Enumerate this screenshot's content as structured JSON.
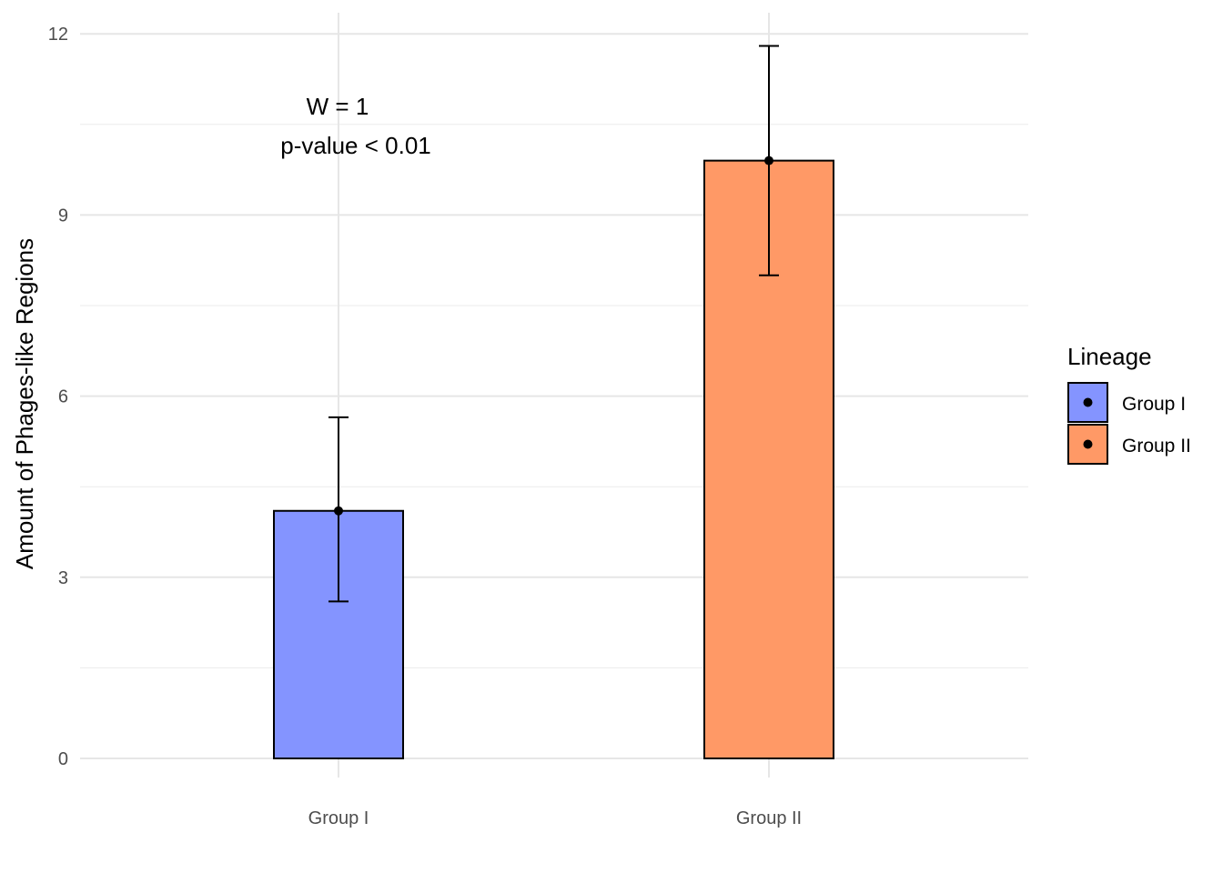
{
  "chart_data": {
    "type": "bar",
    "categories": [
      "Group I",
      "Group II"
    ],
    "values": [
      4.1,
      9.9
    ],
    "error_low": [
      2.6,
      8.0
    ],
    "error_high": [
      5.65,
      11.8
    ],
    "colors": [
      "#8494FF",
      "#FF9966"
    ],
    "ylabel": "Amount of Phages-like Regions",
    "xlabel": "",
    "ylim": [
      0,
      12.3
    ],
    "y_ticks": [
      0,
      3,
      6,
      9,
      12
    ],
    "grid": true,
    "annotation": {
      "lines": [
        "W = 1",
        "p-value < 0.01"
      ],
      "x_category": "Group I",
      "y_values": [
        10.8,
        10.15
      ]
    },
    "legend": {
      "title": "Lineage",
      "position": "right",
      "entries": [
        "Group I",
        "Group II"
      ]
    }
  }
}
